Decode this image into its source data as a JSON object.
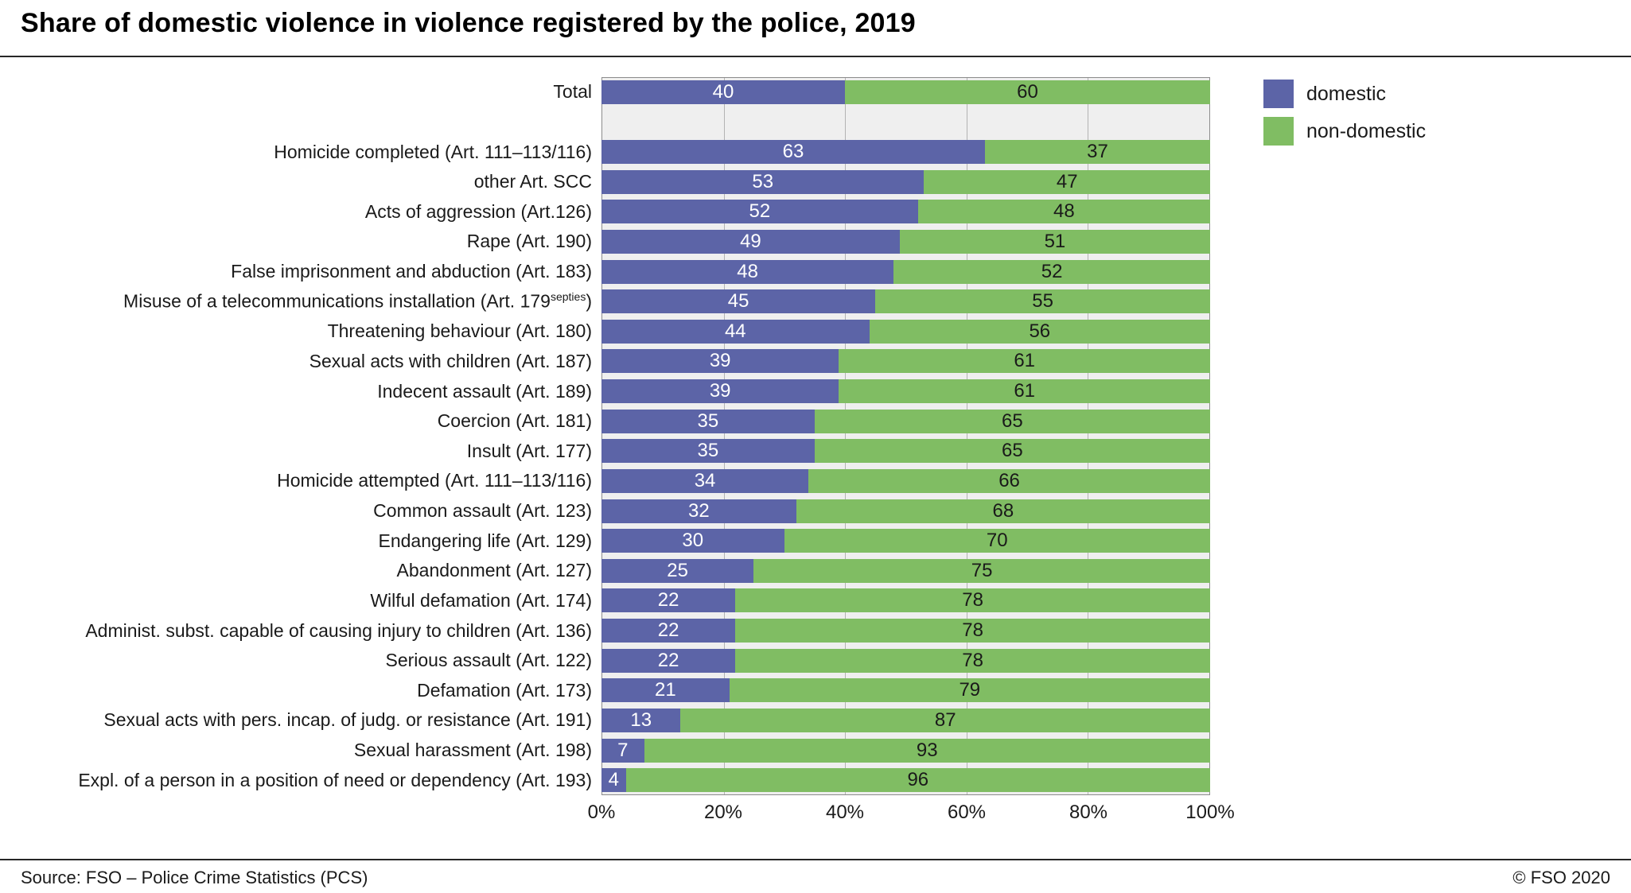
{
  "title": "Share of domestic violence in violence registered by the police, 2019",
  "footer": {
    "source": "Source: FSO – Police Crime Statistics (PCS)",
    "copyright": "© FSO 2020"
  },
  "chart_data": {
    "type": "bar",
    "orientation": "horizontal",
    "stacked": true,
    "title": "Share of domestic violence in violence registered by the police, 2019",
    "xlabel": "",
    "ylabel": "",
    "xlim": [
      0,
      100
    ],
    "grid_x": [
      20,
      40,
      60,
      80
    ],
    "x_ticks": [
      "0%",
      "20%",
      "40%",
      "60%",
      "80%",
      "100%"
    ],
    "legend_position": "top-right",
    "gap_after": [
      0
    ],
    "categories": [
      "Total",
      "Homicide completed (Art. 111–113/116)",
      "other Art. SCC",
      "Acts of aggression (Art.126)",
      "Rape (Art. 190)",
      "False imprisonment and abduction (Art. 183)",
      "Misuse of a telecommunications installation (Art. 179^septies^)",
      "Threatening behaviour (Art. 180)",
      "Sexual acts with children (Art. 187)",
      "Indecent assault (Art. 189)",
      "Coercion (Art. 181)",
      "Insult (Art. 177)",
      "Homicide attempted (Art. 111–113/116)",
      "Common assault (Art. 123)",
      "Endangering life  (Art. 129)",
      "Abandonment (Art. 127)",
      "Wilful defamation (Art. 174)",
      "Administ. subst. capable of causing injury to children (Art. 136)",
      "Serious assault (Art. 122)",
      "Defamation (Art. 173)",
      "Sexual acts with pers. incap. of judg. or resistance (Art. 191)",
      "Sexual harassment (Art. 198)",
      "Expl. of a person in a position of need or dependency (Art. 193)"
    ],
    "series": [
      {
        "name": "domestic",
        "color": "#5c64a7",
        "values": [
          40,
          63,
          53,
          52,
          49,
          48,
          45,
          44,
          39,
          39,
          35,
          35,
          34,
          32,
          30,
          25,
          22,
          22,
          22,
          21,
          13,
          7,
          4
        ]
      },
      {
        "name": "non-domestic",
        "color": "#80bd63",
        "values": [
          60,
          37,
          47,
          48,
          51,
          52,
          55,
          56,
          61,
          61,
          65,
          65,
          66,
          68,
          70,
          75,
          78,
          78,
          78,
          79,
          87,
          93,
          96
        ]
      }
    ]
  }
}
